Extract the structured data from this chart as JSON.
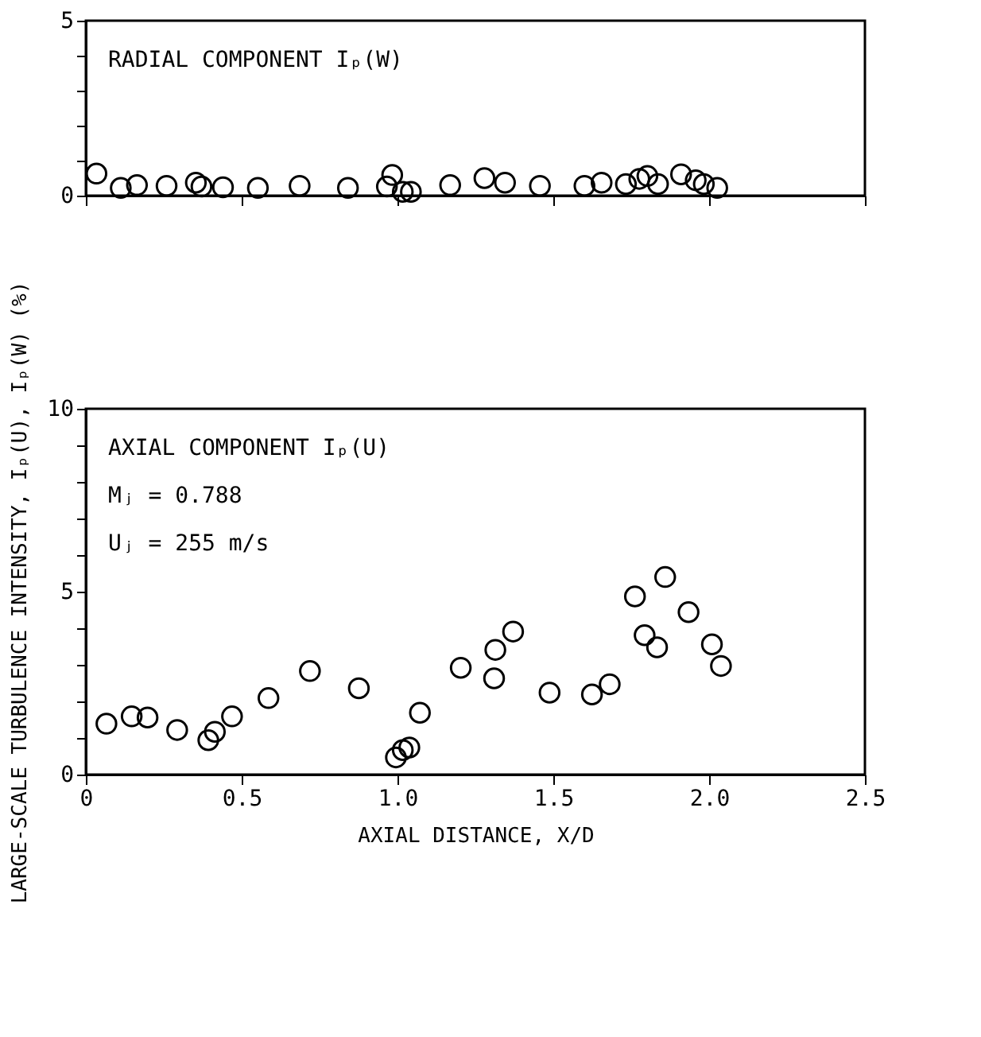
{
  "chart_data": [
    {
      "type": "scatter",
      "marker": "circle",
      "grid": false,
      "tick_labels": "y",
      "annotations": [
        "RADIAL COMPONENT Iₚ(W)"
      ],
      "xlim": [
        0,
        2.5
      ],
      "xticks": [
        {
          "value": 0,
          "label": null
        },
        {
          "value": 0.5,
          "label": null
        },
        {
          "value": 1,
          "label": null
        },
        {
          "value": 1.5,
          "label": null
        },
        {
          "value": 2,
          "label": null
        },
        {
          "value": 2.5,
          "label": null
        }
      ],
      "ylim": [
        0,
        5
      ],
      "yticks": [
        0,
        {
          "value": 1,
          "label": null
        },
        {
          "value": 2,
          "label": null
        },
        {
          "value": 3,
          "label": null
        },
        {
          "value": 4,
          "label": null
        },
        5
      ],
      "series": [
        {
          "color": "#000000",
          "x": [
            0.034,
            0.112,
            0.164,
            0.259,
            0.353,
            0.371,
            0.44,
            0.552,
            0.686,
            0.841,
            0.966,
            0.983,
            1.017,
            1.043,
            1.169,
            1.279,
            1.345,
            1.457,
            1.6,
            1.655,
            1.733,
            1.776,
            1.802,
            1.836,
            1.91,
            1.957,
            1.983,
            2.026
          ],
          "values": [
            0.63,
            0.22,
            0.3,
            0.28,
            0.37,
            0.26,
            0.24,
            0.22,
            0.28,
            0.22,
            0.26,
            0.59,
            0.11,
            0.11,
            0.3,
            0.5,
            0.37,
            0.28,
            0.28,
            0.37,
            0.33,
            0.48,
            0.56,
            0.33,
            0.61,
            0.44,
            0.33,
            0.22
          ]
        }
      ]
    },
    {
      "type": "scatter",
      "marker": "circle",
      "grid": false,
      "xlabel": "AXIAL DISTANCE, X/D",
      "ylabel": "LARGE-SCALE TURBULENCE INTENSITY, Iₚ(U), Iₚ(W)  (%)",
      "annotations": [
        "AXIAL COMPONENT Iₚ(U)",
        "Mⱼ = 0.788",
        "Uⱼ = 255 m/s"
      ],
      "xlim": [
        0,
        2.5
      ],
      "xticks": [
        0,
        0.5,
        "1.0",
        1.5,
        "2.0",
        2.5
      ],
      "ylim": [
        0,
        10
      ],
      "yticks": [
        0,
        {
          "value": 1,
          "label": null
        },
        {
          "value": 2,
          "label": null
        },
        {
          "value": 3,
          "label": null
        },
        {
          "value": 4,
          "label": null
        },
        5,
        {
          "value": 6,
          "label": null
        },
        {
          "value": 7,
          "label": null
        },
        {
          "value": 8,
          "label": null
        },
        {
          "value": 9,
          "label": null
        },
        10
      ],
      "series": [
        {
          "color": "#000000",
          "x": [
            0.066,
            0.147,
            0.198,
            0.293,
            0.393,
            0.414,
            0.469,
            0.586,
            0.719,
            0.876,
            0.995,
            1.017,
            1.038,
            1.072,
            1.203,
            1.31,
            1.314,
            1.371,
            1.488,
            1.624,
            1.681,
            1.762,
            1.793,
            1.833,
            1.859,
            1.934,
            2.009,
            2.038
          ],
          "values": [
            1.39,
            1.59,
            1.56,
            1.22,
            0.94,
            1.17,
            1.59,
            2.09,
            2.83,
            2.36,
            0.47,
            0.67,
            0.74,
            1.69,
            2.92,
            2.63,
            3.41,
            3.91,
            2.24,
            2.19,
            2.47,
            4.87,
            3.81,
            3.48,
            5.4,
            4.44,
            3.56,
            2.97
          ]
        }
      ]
    }
  ]
}
